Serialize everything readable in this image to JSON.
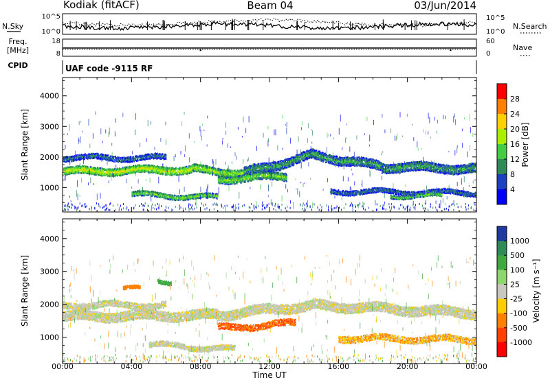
{
  "header": {
    "title": "Kodiak (fitACF)",
    "beam": "Beam 04",
    "date": "03/Jun/2014"
  },
  "strip_panels": {
    "nsky_label": "N.Sky",
    "nsky_ticks": [
      "10^5",
      "10^0"
    ],
    "nsearch_label": "N.Search",
    "nsearch_ticks": [
      "10^5",
      "10^0"
    ],
    "freq_label": "Freq.",
    "freq_unit": "[MHz]",
    "freq_ticks": [
      "18",
      "8"
    ],
    "nave_label": "Nave",
    "nave_ticks": [
      "60",
      "0"
    ],
    "cpid_label": "CPID",
    "cpid_value": "UAF code -9115 RF"
  },
  "chart_data": [
    {
      "type": "heatmap",
      "name": "power",
      "ylabel": "Slant Range [km]",
      "ylim": [
        200,
        4600
      ],
      "yticks": [
        "1000",
        "2000",
        "3000",
        "4000"
      ],
      "xlim_hours": [
        0,
        24
      ],
      "colorbar": {
        "label": "Power [dB]",
        "ticks": [
          "28",
          "24",
          "20",
          "16",
          "12",
          "8",
          "4"
        ],
        "colors": [
          "#ff0000",
          "#ff7f00",
          "#ffd000",
          "#aaee00",
          "#44cc44",
          "#2e8b57",
          "#1e40c0",
          "#0000ff"
        ]
      },
      "bands": [
        {
          "t0": 0.0,
          "t1": 7.5,
          "r_start": 1550,
          "r_end": 1620,
          "width": 250,
          "power": 18
        },
        {
          "t0": 7.5,
          "t1": 10.5,
          "r_start": 1620,
          "r_end": 1500,
          "width": 250,
          "power": 16
        },
        {
          "t0": 10.5,
          "t1": 14.5,
          "r_start": 1500,
          "r_end": 2100,
          "width": 300,
          "power": 10
        },
        {
          "t0": 14.5,
          "t1": 18.5,
          "r_start": 2100,
          "r_end": 1700,
          "width": 300,
          "power": 10
        },
        {
          "t0": 18.5,
          "t1": 24.0,
          "r_start": 1700,
          "r_end": 1650,
          "width": 300,
          "power": 10
        },
        {
          "t0": 0.0,
          "t1": 6.0,
          "r_start": 2000,
          "r_end": 2000,
          "width": 180,
          "power": 8
        },
        {
          "t0": 4.0,
          "t1": 9.0,
          "r_start": 800,
          "r_end": 700,
          "width": 160,
          "power": 14
        },
        {
          "t0": 9.0,
          "t1": 13.0,
          "r_start": 1300,
          "r_end": 1400,
          "width": 260,
          "power": 14
        },
        {
          "t0": 15.5,
          "t1": 24.0,
          "r_start": 900,
          "r_end": 850,
          "width": 160,
          "power": 8
        },
        {
          "t0": 19.0,
          "t1": 22.0,
          "r_start": 750,
          "r_end": 750,
          "width": 120,
          "power": 14
        }
      ]
    },
    {
      "type": "heatmap",
      "name": "velocity",
      "ylabel": "Slant Range [km]",
      "ylim": [
        200,
        4600
      ],
      "yticks": [
        "1000",
        "2000",
        "3000",
        "4000"
      ],
      "xlim_hours": [
        0,
        24
      ],
      "colorbar": {
        "label": "Velocity [m s⁻¹]",
        "ticks": [
          "1000",
          "500",
          "100",
          "25",
          "-25",
          "-100",
          "-500",
          "-1000"
        ],
        "colors": [
          "#1e3aa0",
          "#2e8b57",
          "#3fa83f",
          "#8fd66f",
          "#c8c8c0",
          "#ffcc00",
          "#ff8000",
          "#ff4000",
          "#ff0000"
        ]
      },
      "bands": [
        {
          "t0": 0.0,
          "t1": 9.0,
          "r_start": 1650,
          "r_end": 1700,
          "width": 300,
          "vel": 0
        },
        {
          "t0": 9.0,
          "t1": 14.5,
          "r_start": 1700,
          "r_end": 2000,
          "width": 300,
          "vel": 0
        },
        {
          "t0": 14.5,
          "t1": 24.0,
          "r_start": 2000,
          "r_end": 1750,
          "width": 300,
          "vel": 0
        },
        {
          "t0": 0.0,
          "t1": 6.0,
          "r_start": 2000,
          "r_end": 2000,
          "width": 200,
          "vel": 0
        },
        {
          "t0": 5.0,
          "t1": 10.0,
          "r_start": 800,
          "r_end": 650,
          "width": 160,
          "vel": 0
        },
        {
          "t0": 9.0,
          "t1": 13.5,
          "r_start": 1300,
          "r_end": 1450,
          "width": 200,
          "vel": -300
        },
        {
          "t0": 5.5,
          "t1": 6.3,
          "r_start": 2700,
          "r_end": 2700,
          "width": 120,
          "vel": 200
        },
        {
          "t0": 3.5,
          "t1": 4.5,
          "r_start": 2500,
          "r_end": 2500,
          "width": 100,
          "vel": -200
        },
        {
          "t0": 16.0,
          "t1": 24.0,
          "r_start": 1000,
          "r_end": 950,
          "width": 200,
          "vel": -50
        }
      ]
    }
  ],
  "time_axis": {
    "ticks": [
      "00:00",
      "04:00",
      "08:00",
      "12:00",
      "16:00",
      "20:00",
      "00:00"
    ],
    "label": "Time UT"
  }
}
